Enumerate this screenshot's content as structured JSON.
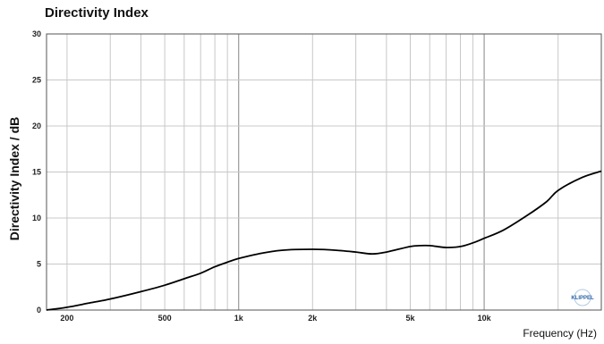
{
  "chart_data": {
    "type": "line",
    "title": "Directivity Index",
    "xlabel": "Frequency (Hz)",
    "ylabel": "Directivity Index / dB",
    "x_scale": "log",
    "xlim": [
      165,
      30000
    ],
    "ylim": [
      0,
      30
    ],
    "grid": true,
    "y_ticks": [
      0,
      5,
      10,
      15,
      20,
      25,
      30
    ],
    "x_tick_labels": [
      {
        "value": 200,
        "label": "200"
      },
      {
        "value": 500,
        "label": "500"
      },
      {
        "value": 1000,
        "label": "1k"
      },
      {
        "value": 2000,
        "label": "2k"
      },
      {
        "value": 5000,
        "label": "5k"
      },
      {
        "value": 10000,
        "label": "10k"
      }
    ],
    "series": [
      {
        "color": "#000000",
        "x": [
          165,
          200,
          250,
          300,
          400,
          500,
          600,
          700,
          800,
          900,
          1000,
          1200,
          1500,
          2000,
          2500,
          3000,
          3500,
          4000,
          5000,
          5500,
          6000,
          7000,
          8000,
          9000,
          10000,
          12000,
          15000,
          18000,
          20000,
          25000,
          30000
        ],
        "y": [
          0,
          0.3,
          0.8,
          1.2,
          2.0,
          2.7,
          3.4,
          4.0,
          4.7,
          5.2,
          5.6,
          6.1,
          6.5,
          6.6,
          6.5,
          6.3,
          6.1,
          6.3,
          6.9,
          7.0,
          7.0,
          6.8,
          6.9,
          7.3,
          7.8,
          8.7,
          10.3,
          11.8,
          13.0,
          14.4,
          15.1
        ]
      }
    ]
  },
  "logo_text": "KLIPPEL"
}
